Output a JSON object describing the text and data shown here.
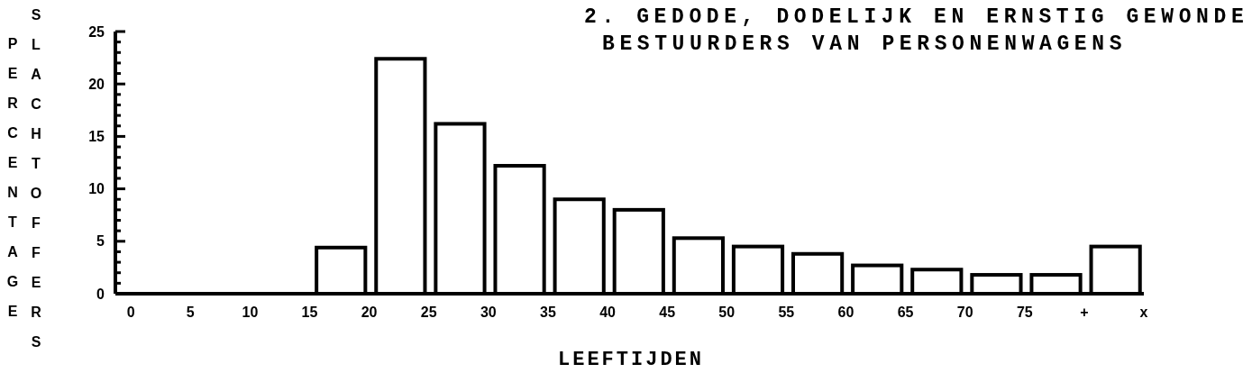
{
  "chart_data": {
    "type": "histogram",
    "title": "2. GEDODE, DODELIJK EN ERNSTIG GEWONDE\nBESTUURDERS VAN PERSONENWAGENS",
    "xlabel": "LEEFTIJDEN",
    "ylabel": "PERCENTAGE SLACHTOFFERS",
    "bins": [
      0,
      5,
      10,
      15,
      20,
      25,
      30,
      35,
      40,
      45,
      50,
      55,
      60,
      65,
      70,
      75,
      80,
      85
    ],
    "values": [
      0,
      0,
      0,
      4.4,
      22.4,
      16.2,
      12.2,
      9.0,
      8.0,
      5.3,
      4.5,
      3.8,
      2.7,
      2.3,
      1.8,
      1.8,
      4.5
    ],
    "color": "#ffffff",
    "xlim": [
      -1.3,
      85
    ],
    "xticks": [
      0,
      5,
      10,
      15,
      20,
      25,
      30,
      35,
      40,
      45,
      50,
      55,
      60,
      65,
      70,
      75,
      {
        "value": 80,
        "label": "+"
      },
      {
        "value": 85,
        "label": "x"
      }
    ],
    "ylim": [
      0,
      25
    ],
    "yticks": [
      0,
      {
        "value": 1,
        "label": null
      },
      {
        "value": 2,
        "label": null
      },
      {
        "value": 3,
        "label": null
      },
      {
        "value": 4,
        "label": null
      },
      5,
      {
        "value": 6,
        "label": null
      },
      {
        "value": 7,
        "label": null
      },
      {
        "value": 8,
        "label": null
      },
      {
        "value": 9,
        "label": null
      },
      10,
      {
        "value": 11,
        "label": null
      },
      {
        "value": 12,
        "label": null
      },
      {
        "value": 13,
        "label": null
      },
      {
        "value": 14,
        "label": null
      },
      15,
      {
        "value": 16,
        "label": null
      },
      {
        "value": 17,
        "label": null
      },
      {
        "value": 18,
        "label": null
      },
      {
        "value": 19,
        "label": null
      },
      20,
      {
        "value": 21,
        "label": null
      },
      {
        "value": 22,
        "label": null
      },
      {
        "value": 23,
        "label": null
      },
      {
        "value": 24,
        "label": null
      },
      25
    ],
    "grid": false,
    "legend": false
  }
}
